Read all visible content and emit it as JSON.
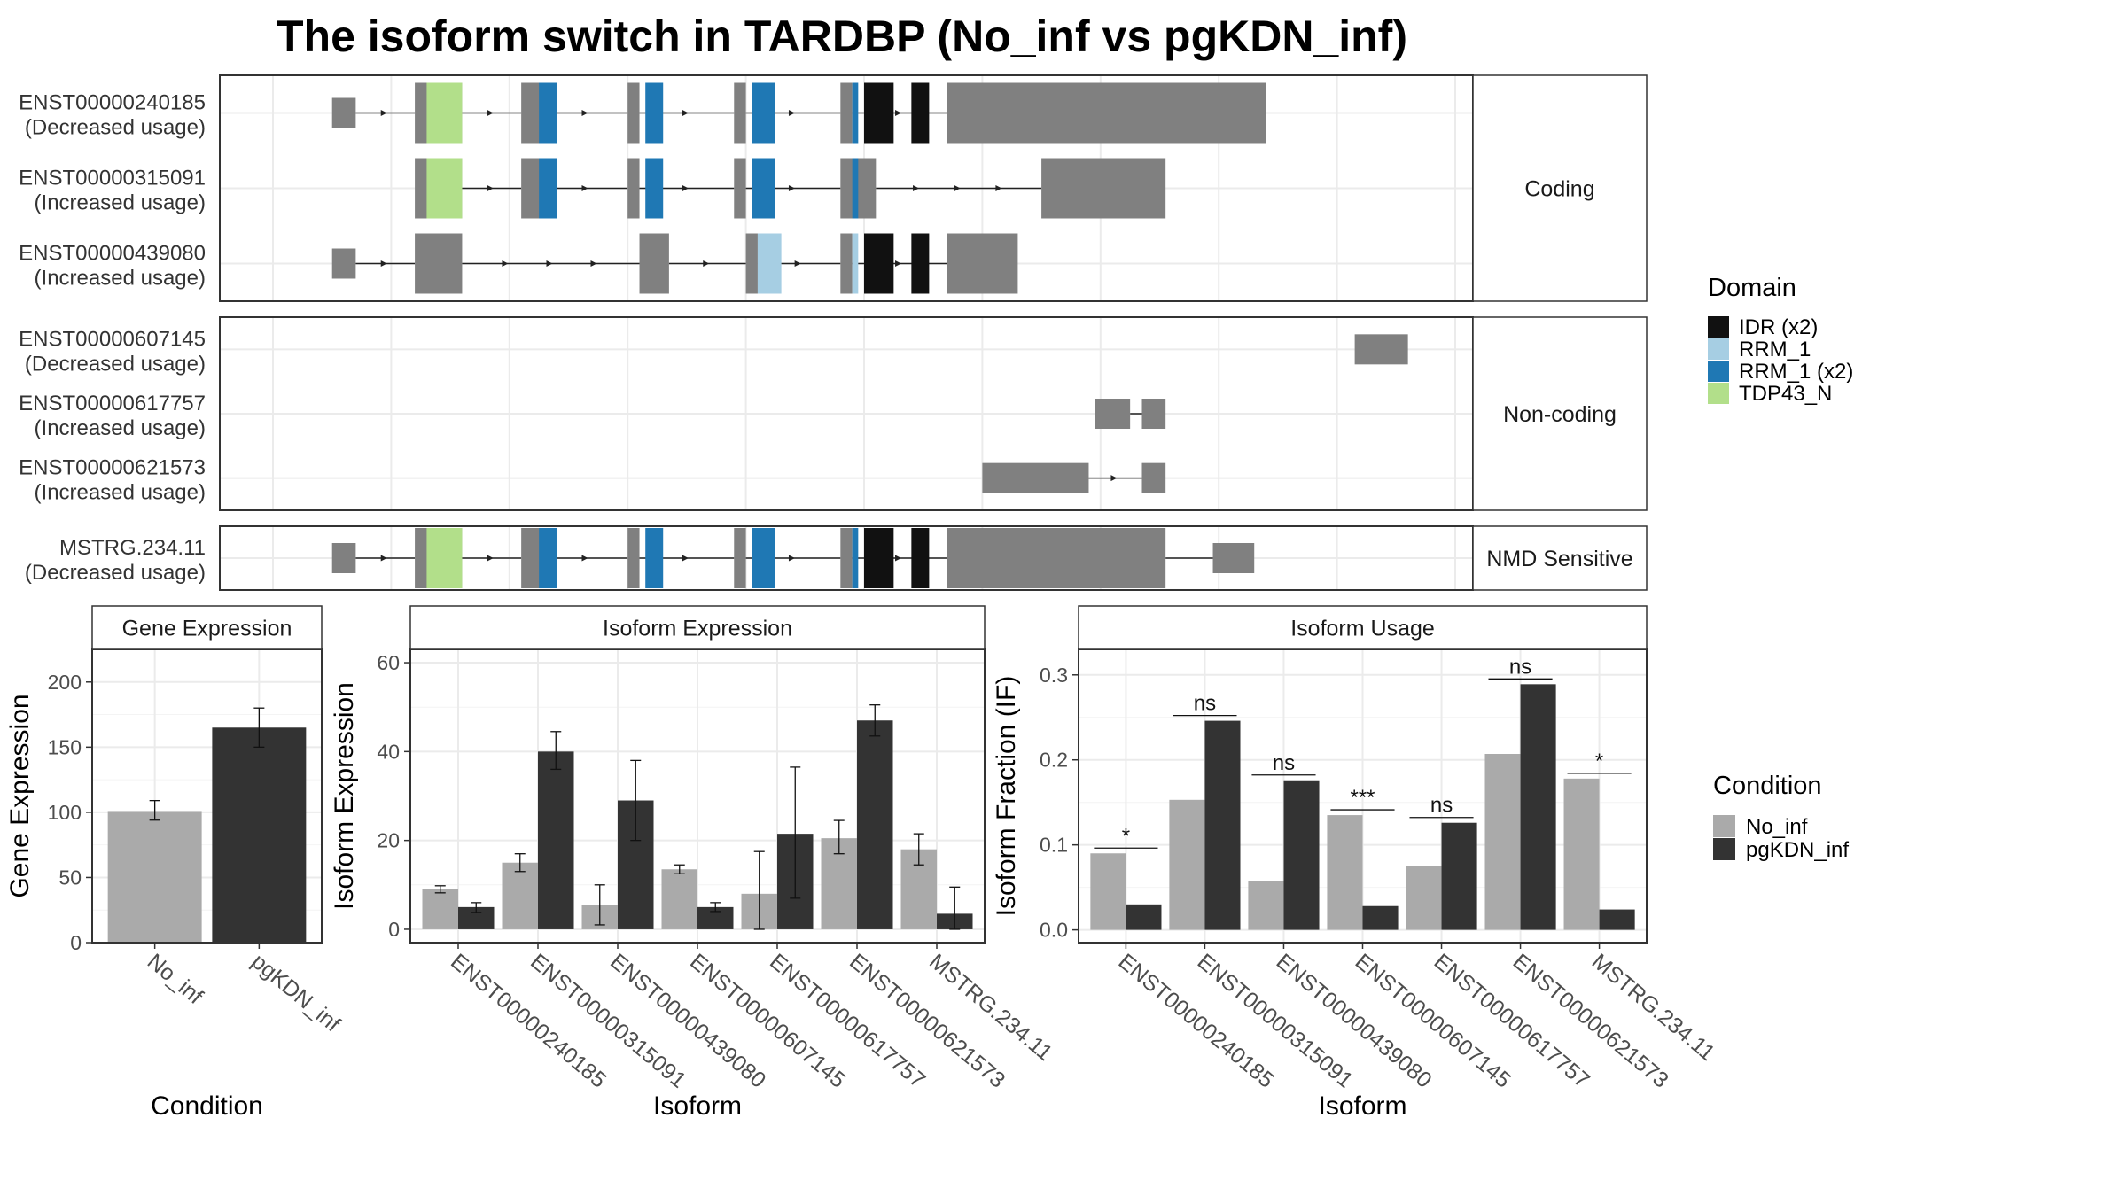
{
  "title": "The isoform switch in TARDBP (No_inf vs pgKDN_inf)",
  "colors": {
    "exon": "#808080",
    "IDR (x2)": "#111111",
    "RRM_1": "#a6cee3",
    "RRM_1 (x2)": "#1f78b4",
    "TDP43_N": "#b2df8a",
    "No_inf": "#aaaaaa",
    "pgKDN_inf": "#333333"
  },
  "structure": {
    "x_range": [
      0,
      100
    ],
    "panels": [
      {
        "label": "Coding",
        "transcripts": [
          {
            "name": "ENST00000240185",
            "usage": "(Decreased usage)",
            "exons": [
              [
                5,
                7,
                "n"
              ],
              [
                12,
                16,
                "t"
              ],
              [
                21,
                23,
                "t"
              ],
              [
                30,
                31,
                "t"
              ],
              [
                39,
                40,
                "t"
              ],
              [
                48,
                49,
                "t"
              ],
              [
                57,
                84,
                "t"
              ]
            ],
            "domains": [
              [
                13,
                16,
                "TDP43_N"
              ],
              [
                22.5,
                24,
                "RRM_1 (x2)"
              ],
              [
                31.5,
                33,
                "RRM_1 (x2)"
              ],
              [
                40.5,
                42.5,
                "RRM_1 (x2)"
              ],
              [
                49,
                49.5,
                "RRM_1 (x2)"
              ],
              [
                50,
                52.5,
                "IDR (x2)"
              ],
              [
                54,
                55.5,
                "IDR (x2)"
              ]
            ]
          },
          {
            "name": "ENST00000315091",
            "usage": "(Increased usage)",
            "exons": [
              [
                12,
                16,
                "t"
              ],
              [
                21,
                23,
                "t"
              ],
              [
                30,
                31,
                "t"
              ],
              [
                39,
                40,
                "t"
              ],
              [
                48,
                51,
                "t"
              ],
              [
                65,
                75.5,
                "t"
              ]
            ],
            "domains": [
              [
                13,
                16,
                "TDP43_N"
              ],
              [
                22.5,
                24,
                "RRM_1 (x2)"
              ],
              [
                31.5,
                33,
                "RRM_1 (x2)"
              ],
              [
                40.5,
                42.5,
                "RRM_1 (x2)"
              ],
              [
                49,
                49.5,
                "RRM_1 (x2)"
              ]
            ]
          },
          {
            "name": "ENST00000439080",
            "usage": "(Increased usage)",
            "exons": [
              [
                5,
                7,
                "n"
              ],
              [
                12,
                16,
                "t"
              ],
              [
                31,
                33.5,
                "t"
              ],
              [
                40,
                41,
                "t"
              ],
              [
                48,
                49,
                "t"
              ],
              [
                57,
                63,
                "t"
              ]
            ],
            "domains": [
              [
                41,
                43,
                "RRM_1"
              ],
              [
                49,
                49.5,
                "RRM_1"
              ],
              [
                50,
                52.5,
                "IDR (x2)"
              ],
              [
                54,
                55.5,
                "IDR (x2)"
              ]
            ]
          }
        ]
      },
      {
        "label": "Non-coding",
        "transcripts": [
          {
            "name": "ENST00000607145",
            "usage": "(Decreased usage)",
            "exons": [
              [
                91.5,
                96,
                "n"
              ]
            ],
            "domains": []
          },
          {
            "name": "ENST00000617757",
            "usage": "(Increased usage)",
            "exons": [
              [
                69.5,
                72.5,
                "n"
              ],
              [
                73.5,
                75.5,
                "n"
              ]
            ],
            "domains": []
          },
          {
            "name": "ENST00000621573",
            "usage": "(Increased usage)",
            "exons": [
              [
                60,
                69,
                "n"
              ],
              [
                73.5,
                75.5,
                "n"
              ]
            ],
            "domains": []
          }
        ]
      },
      {
        "label": "NMD Sensitive",
        "transcripts": [
          {
            "name": "MSTRG.234.11",
            "usage": "(Decreased usage)",
            "exons": [
              [
                5,
                7,
                "n"
              ],
              [
                12,
                16,
                "t"
              ],
              [
                21,
                23,
                "t"
              ],
              [
                30,
                31,
                "t"
              ],
              [
                39,
                40,
                "t"
              ],
              [
                48,
                49,
                "t"
              ],
              [
                57,
                75.5,
                "t"
              ],
              [
                79.5,
                83,
                "n"
              ]
            ],
            "domains": [
              [
                13,
                16,
                "TDP43_N"
              ],
              [
                22.5,
                24,
                "RRM_1 (x2)"
              ],
              [
                31.5,
                33,
                "RRM_1 (x2)"
              ],
              [
                40.5,
                42.5,
                "RRM_1 (x2)"
              ],
              [
                49,
                49.5,
                "RRM_1 (x2)"
              ],
              [
                50,
                52.5,
                "IDR (x2)"
              ],
              [
                54,
                55.5,
                "IDR (x2)"
              ]
            ]
          }
        ]
      }
    ]
  },
  "domain_legend": {
    "title": "Domain",
    "items": [
      "IDR (x2)",
      "RRM_1",
      "RRM_1 (x2)",
      "TDP43_N"
    ]
  },
  "condition_legend": {
    "title": "Condition",
    "items": [
      "No_inf",
      "pgKDN_inf"
    ]
  },
  "chart_data": [
    {
      "type": "bar",
      "title": "Gene Expression",
      "xlabel": "Condition",
      "ylabel": "Gene Expression",
      "ylim": [
        0,
        225
      ],
      "yticks": [
        0,
        50,
        100,
        150,
        200
      ],
      "categories": [
        "No_inf",
        "pgKDN_inf"
      ],
      "values": [
        101,
        165
      ],
      "errors": [
        [
          94,
          109
        ],
        [
          150,
          180
        ]
      ]
    },
    {
      "type": "bar",
      "title": "Isoform Expression",
      "xlabel": "Isoform",
      "ylabel": "Isoform Expression",
      "ylim": [
        -3,
        63
      ],
      "yticks": [
        0,
        20,
        40,
        60
      ],
      "categories": [
        "ENST00000240185",
        "ENST00000315091",
        "ENST00000439080",
        "ENST00000607145",
        "ENST00000617757",
        "ENST00000621573",
        "MSTRG.234.11"
      ],
      "series": [
        {
          "name": "No_inf",
          "values": [
            9,
            15,
            5.5,
            13.5,
            8,
            20.5,
            18
          ],
          "errors": [
            [
              8.2,
              9.8
            ],
            [
              13,
              17
            ],
            [
              1,
              10
            ],
            [
              12.5,
              14.5
            ],
            [
              0,
              17.5
            ],
            [
              17,
              24.5
            ],
            [
              14.5,
              21.5
            ]
          ]
        },
        {
          "name": "pgKDN_inf",
          "values": [
            5,
            40,
            29,
            5,
            21.5,
            47,
            3.5
          ],
          "errors": [
            [
              3.8,
              6
            ],
            [
              36,
              44.5
            ],
            [
              20,
              38
            ],
            [
              4,
              6
            ],
            [
              7,
              36.5
            ],
            [
              43.5,
              50.5
            ],
            [
              0,
              9.5
            ]
          ]
        }
      ]
    },
    {
      "type": "bar",
      "title": "Isoform Usage",
      "xlabel": "Isoform",
      "ylabel": "Isoform Fraction (IF)",
      "ylim": [
        -0.015,
        0.33
      ],
      "yticks": [
        0.0,
        0.1,
        0.2,
        0.3
      ],
      "ytick_labels": [
        "0.0",
        "0.1",
        "0.2",
        "0.3"
      ],
      "categories": [
        "ENST00000240185",
        "ENST00000315091",
        "ENST00000439080",
        "ENST00000607145",
        "ENST00000617757",
        "ENST00000621573",
        "MSTRG.234.11"
      ],
      "series": [
        {
          "name": "No_inf",
          "values": [
            0.09,
            0.153,
            0.057,
            0.135,
            0.075,
            0.207,
            0.178
          ]
        },
        {
          "name": "pgKDN_inf",
          "values": [
            0.03,
            0.246,
            0.176,
            0.028,
            0.126,
            0.289,
            0.024
          ]
        }
      ],
      "significance": [
        "*",
        "ns",
        "ns",
        "***",
        "ns",
        "ns",
        "*"
      ]
    }
  ]
}
